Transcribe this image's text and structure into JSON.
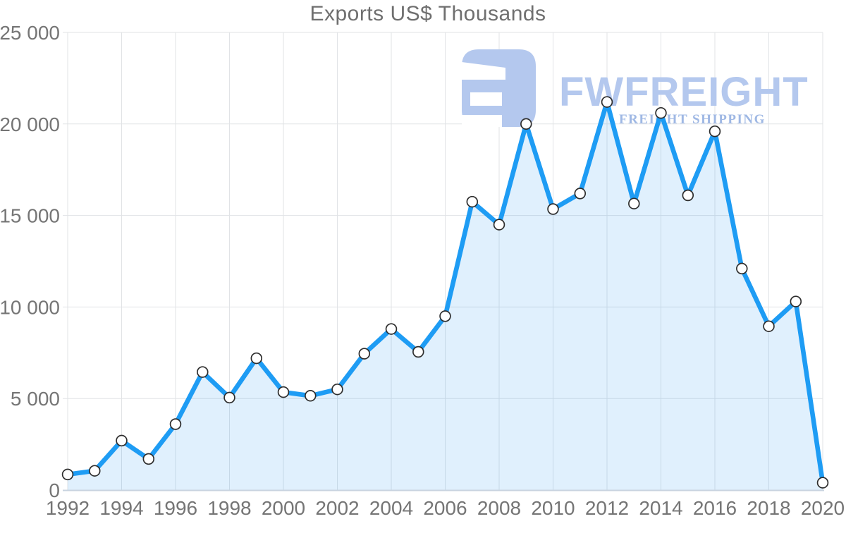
{
  "chart_data": {
    "type": "area",
    "title": "Exports US$ Thousands",
    "series_name": "Exports",
    "x": [
      1992,
      1993,
      1994,
      1995,
      1996,
      1997,
      1998,
      1999,
      2000,
      2001,
      2002,
      2003,
      2004,
      2005,
      2006,
      2007,
      2008,
      2009,
      2010,
      2011,
      2012,
      2013,
      2014,
      2015,
      2016,
      2017,
      2018,
      2019,
      2020
    ],
    "values": [
      850,
      1050,
      2700,
      1700,
      3600,
      6450,
      5050,
      7200,
      5350,
      5150,
      5500,
      7450,
      8800,
      7550,
      9500,
      15750,
      14500,
      20000,
      15350,
      16200,
      21200,
      15650,
      20600,
      16100,
      19600,
      12100,
      8950,
      10300,
      400
    ],
    "xlim": [
      1992,
      2020
    ],
    "ylim": [
      0,
      25000
    ],
    "grid": true,
    "legend": "none",
    "x_ticks": [
      1992,
      1994,
      1996,
      1998,
      2000,
      2002,
      2004,
      2006,
      2008,
      2010,
      2012,
      2014,
      2016,
      2018,
      2020
    ],
    "x_tick_labels": [
      "1992",
      "1994",
      "1996",
      "1998",
      "2000",
      "2002",
      "2004",
      "2006",
      "2008",
      "2010",
      "2012",
      "2014",
      "2016",
      "2018",
      "2020"
    ],
    "y_ticks": [
      0,
      5000,
      10000,
      15000,
      20000,
      25000
    ],
    "y_tick_labels": [
      "0",
      "5 000",
      "10 000",
      "15 000",
      "20 000",
      "25 000"
    ]
  },
  "watermark": {
    "brand": "FWFREIGHT",
    "tagline": "FREIGHT SHIPPING"
  },
  "colors": {
    "line": "#1e9cf4",
    "fill": "rgba(33, 150, 243, 0.14)",
    "dot_fill": "#ffffff",
    "dot_stroke": "#2e2e2e",
    "grid": "#e1e3e6",
    "axis_line": "#c8d3df",
    "tick_label": "#757575",
    "title": "#6f6f6f",
    "logo": "#b4c8ee",
    "logo_tagline": "#9fb8e4"
  }
}
